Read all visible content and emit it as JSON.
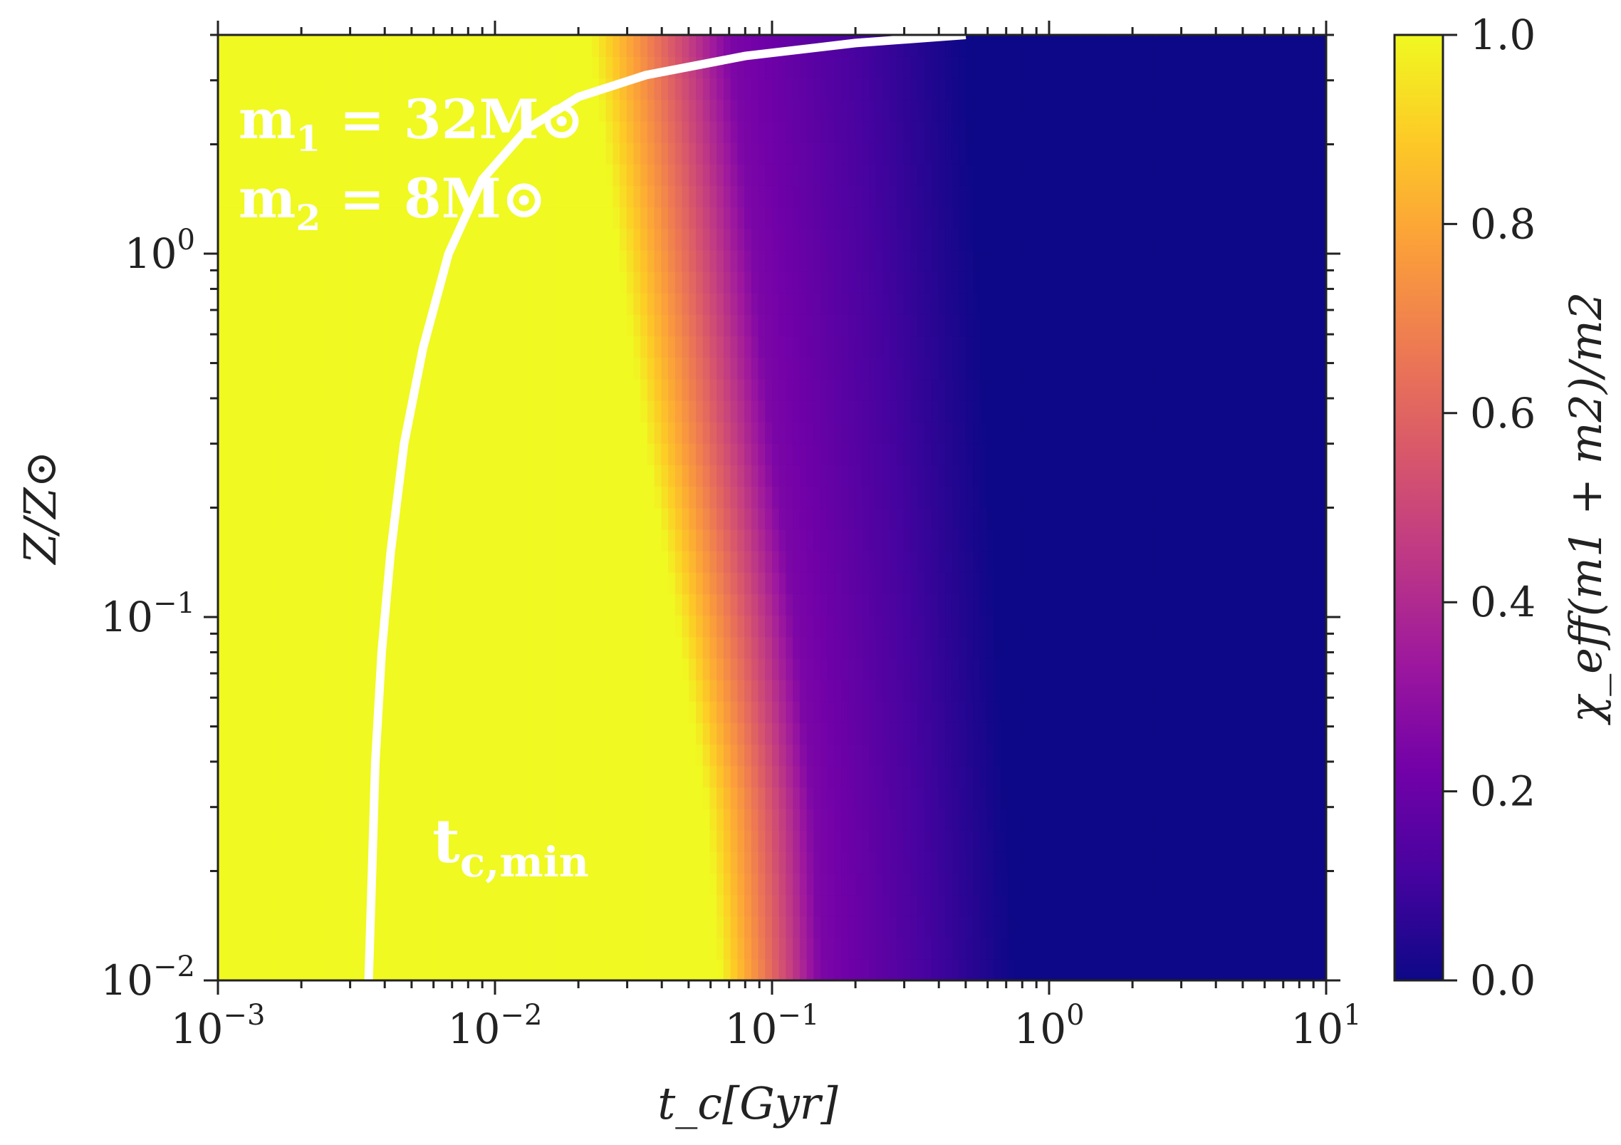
{
  "chart_data": {
    "type": "heatmap",
    "x_axis": {
      "label": "t_c[Gyr]",
      "scale": "log",
      "range": [
        0.001,
        10
      ],
      "ticks": [
        {
          "value": 0.001,
          "base": "10",
          "exp": "−3"
        },
        {
          "value": 0.01,
          "base": "10",
          "exp": "−2"
        },
        {
          "value": 0.1,
          "base": "10",
          "exp": "−1"
        },
        {
          "value": 1,
          "base": "10",
          "exp": "0"
        },
        {
          "value": 10,
          "base": "10",
          "exp": "1"
        }
      ]
    },
    "y_axis": {
      "label": "Z/Z⊙",
      "scale": "log",
      "range": [
        0.01,
        4.0
      ],
      "ticks": [
        {
          "value": 0.01,
          "base": "10",
          "exp": "−2"
        },
        {
          "value": 0.1,
          "base": "10",
          "exp": "−1"
        },
        {
          "value": 1,
          "base": "10",
          "exp": "0"
        }
      ]
    },
    "colorbar": {
      "label": "χ_eff(m1 + m2)/m2",
      "range": [
        0.0,
        1.0
      ],
      "colormap": "plasma",
      "ticks": [
        "0.0",
        "0.2",
        "0.4",
        "0.6",
        "0.8",
        "1.0"
      ]
    },
    "field_description": "Value 1.0 at short t_c, transitioning to 0.0 at long t_c; transition shifts to later t_c at lower Z",
    "transition": [
      {
        "z": 4.0,
        "t_start": 0.022,
        "t_mid": 0.07,
        "t_end": 0.5
      },
      {
        "z": 1.0,
        "t_start": 0.028,
        "t_mid": 0.085,
        "t_end": 0.55
      },
      {
        "z": 0.3,
        "t_start": 0.035,
        "t_mid": 0.1,
        "t_end": 0.6
      },
      {
        "z": 0.1,
        "t_start": 0.045,
        "t_mid": 0.12,
        "t_end": 0.65
      },
      {
        "z": 0.03,
        "t_start": 0.058,
        "t_mid": 0.14,
        "t_end": 0.7
      },
      {
        "z": 0.01,
        "t_start": 0.065,
        "t_mid": 0.15,
        "t_end": 0.75
      }
    ],
    "curve": {
      "name": "t_c,min",
      "color": "#ffffff",
      "points": [
        {
          "t": 0.0035,
          "z": 0.01
        },
        {
          "t": 0.0036,
          "z": 0.02
        },
        {
          "t": 0.0037,
          "z": 0.04
        },
        {
          "t": 0.0039,
          "z": 0.08
        },
        {
          "t": 0.0042,
          "z": 0.15
        },
        {
          "t": 0.0047,
          "z": 0.3
        },
        {
          "t": 0.0055,
          "z": 0.55
        },
        {
          "t": 0.0068,
          "z": 1.0
        },
        {
          "t": 0.009,
          "z": 1.6
        },
        {
          "t": 0.013,
          "z": 2.2
        },
        {
          "t": 0.02,
          "z": 2.7
        },
        {
          "t": 0.035,
          "z": 3.1
        },
        {
          "t": 0.08,
          "z": 3.5
        },
        {
          "t": 0.2,
          "z": 3.8
        },
        {
          "t": 0.5,
          "z": 4.0
        }
      ]
    },
    "annotations": {
      "m1": {
        "main": "m",
        "sub": "1",
        "text": " = 32M⊙"
      },
      "m2": {
        "main": "m",
        "sub": "2",
        "text": " = 8M⊙"
      },
      "tcmin": {
        "main": "t",
        "sub": "c,min"
      }
    },
    "colors": {
      "plasma": [
        "#0d0887",
        "#46039f",
        "#7201a8",
        "#9c179e",
        "#bd3786",
        "#d8576b",
        "#ed7953",
        "#fb9f3a",
        "#fdca26",
        "#f0f921"
      ]
    }
  }
}
